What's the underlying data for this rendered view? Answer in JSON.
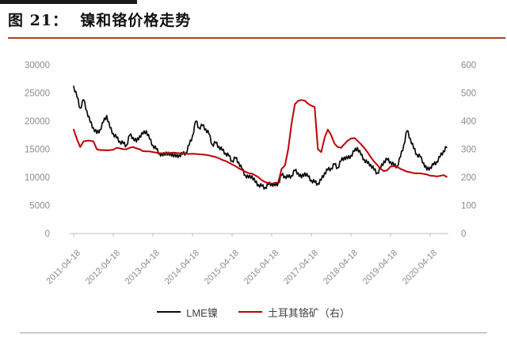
{
  "header": {
    "title": "图 21：  镍和铬价格走势"
  },
  "colors": {
    "top_bar": "#1a1a1a",
    "title_underline": "#a8432a",
    "accent_red": "#c00000",
    "line_black": "#0a0a0a",
    "axis_text": "#8c8c8c",
    "axis_line": "#bfbfbf",
    "legend_text": "#3f3f3f"
  },
  "chart_data": {
    "type": "line",
    "title": "镍和铬价格走势",
    "grid": false,
    "legend_position": "bottom",
    "x_unit": "month",
    "x_start": "2011-04",
    "x_end": "2020-09",
    "x_tick_labels": [
      "2011-04-18",
      "2012-04-18",
      "2013-04-18",
      "2014-04-18",
      "2015-04-18",
      "2016-04-18",
      "2017-04-18",
      "2018-04-18",
      "2019-04-18",
      "2020-04-18"
    ],
    "axes": {
      "left": {
        "min": 0,
        "max": 30000,
        "step": 5000
      },
      "right": {
        "min": 0,
        "max": 600,
        "step": 100
      }
    },
    "series": [
      {
        "name": "LME镍",
        "key": "lme-nickel",
        "axis": "left",
        "color": "#0a0a0a",
        "width": 1.7,
        "jagged": true,
        "values": [
          26200,
          24300,
          22300,
          23800,
          21800,
          19800,
          18800,
          17800,
          18500,
          19800,
          21000,
          18800,
          17800,
          17000,
          16400,
          16000,
          15700,
          17500,
          17100,
          16300,
          17400,
          17700,
          18300,
          16800,
          15700,
          15000,
          14300,
          13800,
          14500,
          13900,
          14200,
          13600,
          14000,
          14100,
          14400,
          15700,
          17400,
          20000,
          18800,
          19200,
          18600,
          17700,
          15800,
          16100,
          15500,
          14800,
          14300,
          13800,
          12900,
          13400,
          12700,
          11400,
          10400,
          9900,
          10300,
          9100,
          8700,
          8400,
          8200,
          8700,
          8900,
          8500,
          9000,
          10400,
          10200,
          10000,
          10300,
          11200,
          10800,
          9900,
          10800,
          10100,
          9500,
          9100,
          8900,
          9500,
          10800,
          11300,
          11600,
          12300,
          11700,
          12900,
          13600,
          13300,
          13900,
          14600,
          15300,
          14000,
          13200,
          12500,
          12300,
          11300,
          10800,
          11600,
          12900,
          13100,
          12800,
          12100,
          12000,
          13600,
          15800,
          18300,
          16900,
          15100,
          14100,
          13600,
          12600,
          11300,
          11800,
          12200,
          12800,
          13600,
          14700,
          15300
        ]
      },
      {
        "name": "土耳其铬矿（右）",
        "key": "turkey-chrome-ore",
        "axis": "right",
        "color": "#c00000",
        "width": 2,
        "jagged": false,
        "values": [
          370,
          335,
          308,
          328,
          330,
          330,
          328,
          300,
          297,
          297,
          296,
          297,
          298,
          305,
          303,
          300,
          300,
          305,
          308,
          303,
          300,
          293,
          292,
          292,
          290,
          288,
          286,
          285,
          285,
          286,
          288,
          287,
          286,
          285,
          284,
          283,
          284,
          283,
          282,
          281,
          280,
          278,
          275,
          272,
          268,
          262,
          258,
          252,
          246,
          240,
          232,
          226,
          220,
          215,
          213,
          207,
          200,
          190,
          183,
          180,
          178,
          180,
          182,
          230,
          242,
          300,
          390,
          460,
          472,
          475,
          473,
          462,
          455,
          450,
          300,
          290,
          340,
          370,
          350,
          320,
          308,
          305,
          318,
          330,
          338,
          340,
          330,
          318,
          305,
          290,
          272,
          256,
          244,
          230,
          222,
          225,
          238,
          240,
          237,
          230,
          225,
          220,
          218,
          215,
          214,
          214,
          212,
          210,
          206,
          205,
          203,
          205,
          208,
          202
        ]
      }
    ]
  }
}
